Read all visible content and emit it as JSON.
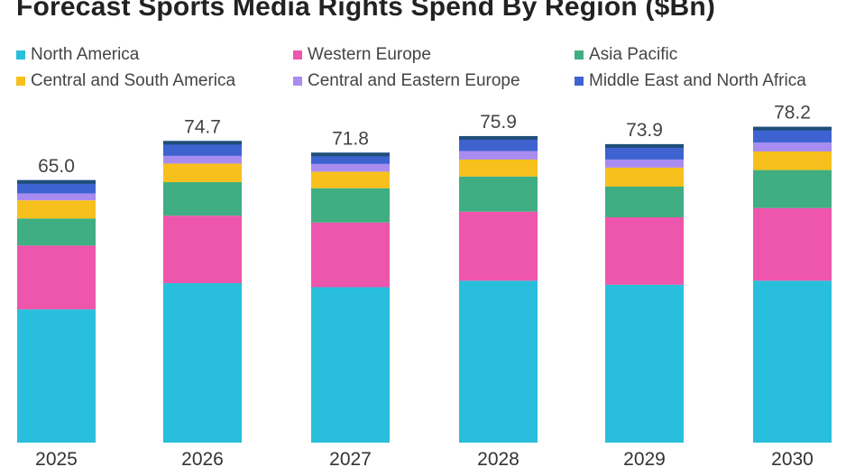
{
  "chart_data": {
    "type": "bar",
    "stacked": true,
    "title": "Forecast Sports Media Rights Spend By Region ($Bn)",
    "categories": [
      "2025",
      "2026",
      "2027",
      "2028",
      "2029",
      "2030"
    ],
    "totals": [
      "65.0",
      "74.7",
      "71.8",
      "75.9",
      "73.9",
      "78.2"
    ],
    "series": [
      {
        "name": "North America",
        "color": "#29bfdc",
        "values": [
          33.0,
          39.5,
          38.5,
          40.1,
          39.1,
          40.1
        ]
      },
      {
        "name": "Western Europe",
        "color": "#ee55ac",
        "values": [
          15.8,
          16.7,
          16.0,
          17.1,
          16.7,
          18.0
        ]
      },
      {
        "name": "Asia Pacific",
        "color": "#3fae82",
        "values": [
          6.7,
          8.3,
          8.5,
          8.7,
          7.6,
          9.4
        ]
      },
      {
        "name": "Central and South America",
        "color": "#f8c01d",
        "values": [
          4.5,
          4.6,
          4.1,
          4.2,
          4.7,
          4.6
        ]
      },
      {
        "name": "Central and Eastern Europe",
        "color": "#a98cf0",
        "values": [
          1.7,
          1.9,
          1.9,
          2.1,
          2.0,
          2.2
        ]
      },
      {
        "name": "Middle East and North Africa",
        "color": "#3e63d1",
        "values": [
          3.3,
          3.7,
          2.8,
          3.7,
          3.8,
          3.9
        ]
      }
    ],
    "legend_position": "top",
    "grid": false,
    "ylim": [
      0,
      80
    ]
  }
}
